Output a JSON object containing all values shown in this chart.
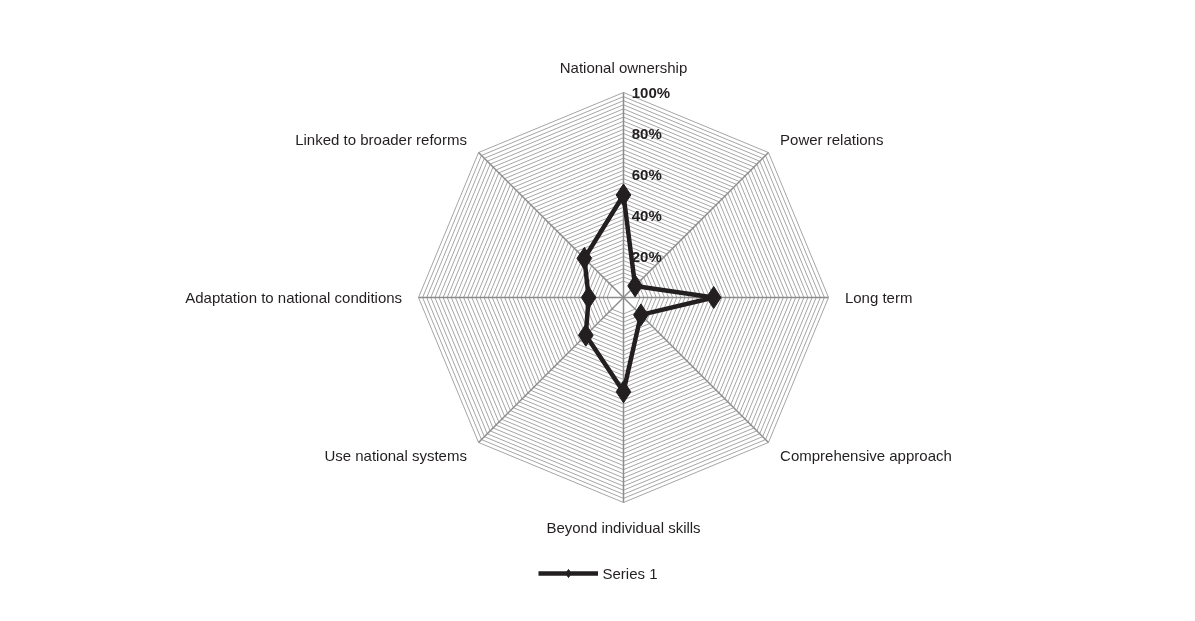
{
  "chart_data": {
    "type": "radar",
    "categories": [
      "National ownership",
      "Power relations",
      "Long term",
      "Comprehensive approach",
      "Beyond individual skills",
      "Use national systems",
      "Adaptation to national conditions",
      "Linked to broader reforms"
    ],
    "series": [
      {
        "name": "Series 1",
        "color": "#231f20",
        "values": [
          50,
          8,
          44,
          12,
          46,
          26,
          17,
          27
        ]
      }
    ],
    "ylim": [
      0,
      100
    ],
    "yticks": [
      {
        "value": 20,
        "label": "20%"
      },
      {
        "value": 40,
        "label": "40%"
      },
      {
        "value": 60,
        "label": "60%"
      },
      {
        "value": 80,
        "label": "80%"
      },
      {
        "value": 100,
        "label": "100%"
      }
    ],
    "grid": true,
    "legend": "bottom",
    "marker": "diamond",
    "line_style": "solid"
  }
}
